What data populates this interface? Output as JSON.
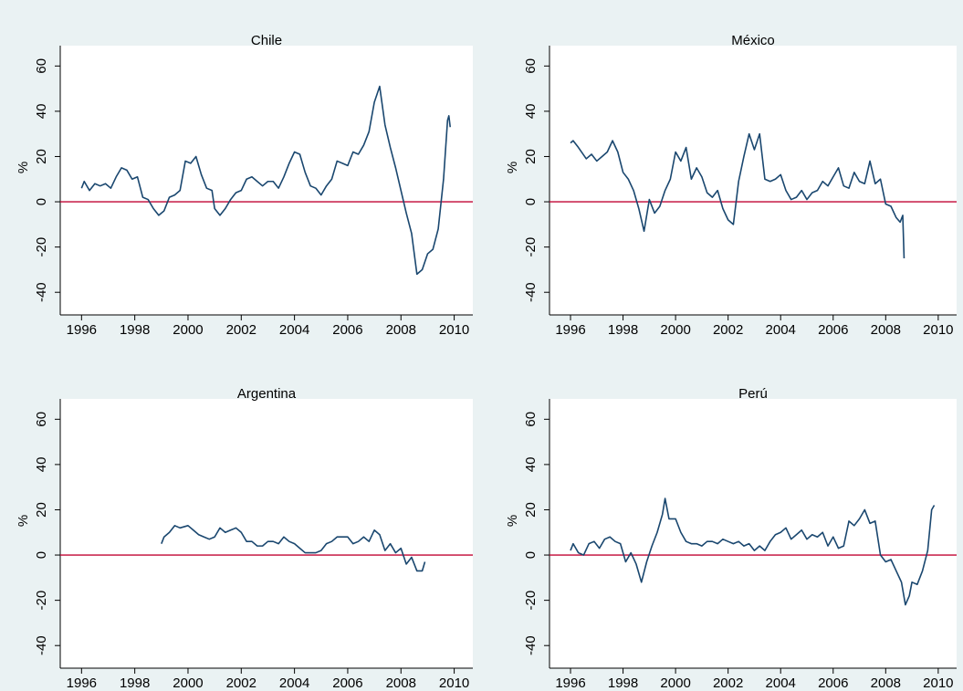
{
  "chart_data": [
    {
      "type": "line",
      "title": "Chile",
      "y_label": "%",
      "color": "#1a476f",
      "grid": false,
      "hline": 0,
      "hline_color": "#c10534",
      "xlim": [
        1995.2,
        2010.7
      ],
      "ylim": [
        -50,
        69
      ],
      "xticks": [
        1996,
        1998,
        2000,
        2002,
        2004,
        2006,
        2008,
        2010
      ],
      "yticks": [
        -40,
        -20,
        0,
        20,
        40,
        60
      ],
      "x": [
        1996.0,
        1996.1,
        1996.3,
        1996.5,
        1996.7,
        1996.9,
        1997.1,
        1997.3,
        1997.5,
        1997.7,
        1997.9,
        1998.1,
        1998.3,
        1998.5,
        1998.7,
        1998.9,
        1999.1,
        1999.3,
        1999.5,
        1999.7,
        1999.9,
        2000.1,
        2000.3,
        2000.5,
        2000.7,
        2000.9,
        2001.0,
        2001.2,
        2001.4,
        2001.6,
        2001.8,
        2002.0,
        2002.2,
        2002.4,
        2002.6,
        2002.8,
        2003.0,
        2003.2,
        2003.4,
        2003.6,
        2003.8,
        2004.0,
        2004.2,
        2004.4,
        2004.6,
        2004.8,
        2005.0,
        2005.2,
        2005.4,
        2005.6,
        2005.8,
        2006.0,
        2006.2,
        2006.4,
        2006.6,
        2006.8,
        2007.0,
        2007.2,
        2007.4,
        2007.6,
        2007.8,
        2008.0,
        2008.2,
        2008.4,
        2008.6,
        2008.8,
        2009.0,
        2009.2,
        2009.4,
        2009.6,
        2009.75,
        2009.8,
        2009.85
      ],
      "values": [
        6,
        9,
        5,
        8,
        7,
        8,
        6,
        11,
        15,
        14,
        10,
        11,
        2,
        1,
        -3,
        -6,
        -4,
        2,
        3,
        5,
        18,
        17,
        20,
        12,
        6,
        5,
        -3,
        -6,
        -3,
        1,
        4,
        5,
        10,
        11,
        9,
        7,
        9,
        9,
        6,
        11,
        17,
        22,
        21,
        13,
        7,
        6,
        3,
        7,
        10,
        18,
        17,
        16,
        22,
        21,
        25,
        31,
        44,
        51,
        34,
        24,
        15,
        5,
        -5,
        -14,
        -32,
        -30,
        -23,
        -21,
        -12,
        10,
        36,
        38,
        33
      ]
    },
    {
      "type": "line",
      "title": "México",
      "y_label": "%",
      "color": "#1a476f",
      "grid": false,
      "hline": 0,
      "hline_color": "#c10534",
      "xlim": [
        1995.2,
        2010.7
      ],
      "ylim": [
        -50,
        69
      ],
      "xticks": [
        1996,
        1998,
        2000,
        2002,
        2004,
        2006,
        2008,
        2010
      ],
      "yticks": [
        -40,
        -20,
        0,
        20,
        40,
        60
      ],
      "x": [
        1996.0,
        1996.1,
        1996.3,
        1996.6,
        1996.8,
        1997.0,
        1997.2,
        1997.4,
        1997.6,
        1997.8,
        1998.0,
        1998.2,
        1998.4,
        1998.6,
        1998.8,
        1999.0,
        1999.2,
        1999.4,
        1999.6,
        1999.8,
        2000.0,
        2000.2,
        2000.4,
        2000.6,
        2000.8,
        2001.0,
        2001.2,
        2001.4,
        2001.6,
        2001.8,
        2002.0,
        2002.2,
        2002.4,
        2002.6,
        2002.8,
        2003.0,
        2003.2,
        2003.4,
        2003.6,
        2003.8,
        2004.0,
        2004.2,
        2004.4,
        2004.6,
        2004.8,
        2005.0,
        2005.2,
        2005.4,
        2005.6,
        2005.8,
        2006.0,
        2006.2,
        2006.4,
        2006.6,
        2006.8,
        2007.0,
        2007.2,
        2007.4,
        2007.6,
        2007.8,
        2008.0,
        2008.2,
        2008.4,
        2008.55,
        2008.65,
        2008.7
      ],
      "values": [
        26,
        27,
        24,
        19,
        21,
        18,
        20,
        22,
        27,
        22,
        13,
        10,
        5,
        -3,
        -13,
        1,
        -5,
        -2,
        5,
        10,
        22,
        18,
        24,
        10,
        15,
        11,
        4,
        2,
        5,
        -3,
        -8,
        -10,
        9,
        20,
        30,
        23,
        30,
        10,
        9,
        10,
        12,
        5,
        1,
        2,
        5,
        1,
        4,
        5,
        9,
        7,
        11,
        15,
        7,
        6,
        13,
        9,
        8,
        18,
        8,
        10,
        -1,
        -2,
        -7,
        -9,
        -6,
        -25
      ]
    },
    {
      "type": "line",
      "title": "Argentina",
      "y_label": "%",
      "color": "#1a476f",
      "grid": false,
      "hline": 0,
      "hline_color": "#c10534",
      "xlim": [
        1995.2,
        2010.7
      ],
      "ylim": [
        -50,
        69
      ],
      "xticks": [
        1996,
        1998,
        2000,
        2002,
        2004,
        2006,
        2008,
        2010
      ],
      "yticks": [
        -40,
        -20,
        0,
        20,
        40,
        60
      ],
      "x": [
        1999.0,
        1999.1,
        1999.3,
        1999.5,
        1999.7,
        2000.0,
        2000.2,
        2000.4,
        2000.6,
        2000.8,
        2001.0,
        2001.2,
        2001.4,
        2001.6,
        2001.8,
        2002.0,
        2002.2,
        2002.4,
        2002.6,
        2002.8,
        2003.0,
        2003.2,
        2003.4,
        2003.6,
        2003.8,
        2004.0,
        2004.2,
        2004.4,
        2004.6,
        2004.8,
        2005.0,
        2005.2,
        2005.4,
        2005.6,
        2005.8,
        2006.0,
        2006.2,
        2006.4,
        2006.6,
        2006.8,
        2007.0,
        2007.2,
        2007.4,
        2007.6,
        2007.8,
        2008.0,
        2008.2,
        2008.4,
        2008.6,
        2008.8,
        2008.9
      ],
      "values": [
        5,
        8,
        10,
        13,
        12,
        13,
        11,
        9,
        8,
        7,
        8,
        12,
        10,
        11,
        12,
        10,
        6,
        6,
        4,
        4,
        6,
        6,
        5,
        8,
        6,
        5,
        3,
        1,
        1,
        1,
        2,
        5,
        6,
        8,
        8,
        8,
        5,
        6,
        8,
        6,
        11,
        9,
        2,
        5,
        1,
        3,
        -4,
        -1,
        -7,
        -7,
        -3
      ]
    },
    {
      "type": "line",
      "title": "Perú",
      "y_label": "%",
      "color": "#1a476f",
      "grid": false,
      "hline": 0,
      "hline_color": "#c10534",
      "xlim": [
        1995.2,
        2010.7
      ],
      "ylim": [
        -50,
        69
      ],
      "xticks": [
        1996,
        1998,
        2000,
        2002,
        2004,
        2006,
        2008,
        2010
      ],
      "yticks": [
        -40,
        -20,
        0,
        20,
        40,
        60
      ],
      "x": [
        1996.0,
        1996.1,
        1996.3,
        1996.5,
        1996.7,
        1996.9,
        1997.1,
        1997.3,
        1997.5,
        1997.7,
        1997.9,
        1998.1,
        1998.3,
        1998.5,
        1998.7,
        1998.9,
        1999.1,
        1999.3,
        1999.5,
        1999.6,
        1999.75,
        2000.0,
        2000.2,
        2000.4,
        2000.6,
        2000.8,
        2001.0,
        2001.2,
        2001.4,
        2001.6,
        2001.8,
        2002.0,
        2002.2,
        2002.4,
        2002.6,
        2002.8,
        2003.0,
        2003.2,
        2003.4,
        2003.6,
        2003.8,
        2004.0,
        2004.2,
        2004.4,
        2004.6,
        2004.8,
        2005.0,
        2005.2,
        2005.4,
        2005.6,
        2005.8,
        2006.0,
        2006.2,
        2006.4,
        2006.6,
        2006.8,
        2007.0,
        2007.2,
        2007.4,
        2007.6,
        2007.8,
        2008.0,
        2008.2,
        2008.4,
        2008.6,
        2008.75,
        2008.9,
        2009.0,
        2009.2,
        2009.4,
        2009.6,
        2009.75,
        2009.85
      ],
      "values": [
        2,
        5,
        1,
        0,
        5,
        6,
        3,
        7,
        8,
        6,
        5,
        -3,
        1,
        -4,
        -12,
        -3,
        4,
        10,
        18,
        25,
        16,
        16,
        10,
        6,
        5,
        5,
        4,
        6,
        6,
        5,
        7,
        6,
        5,
        6,
        4,
        5,
        2,
        4,
        2,
        6,
        9,
        10,
        12,
        7,
        9,
        11,
        7,
        9,
        8,
        10,
        4,
        8,
        3,
        4,
        15,
        13,
        16,
        20,
        14,
        15,
        0,
        -3,
        -2,
        -7,
        -12,
        -22,
        -18,
        -12,
        -13,
        -7,
        2,
        20,
        22
      ]
    }
  ]
}
